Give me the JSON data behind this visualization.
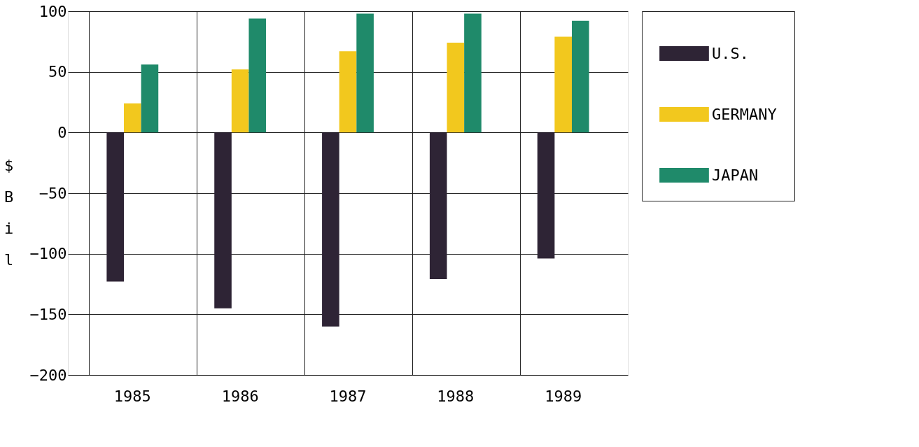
{
  "chart_data": {
    "type": "bar",
    "ylabel": "$Bil",
    "categories": [
      "1985",
      "1986",
      "1987",
      "1988",
      "1989"
    ],
    "series": [
      {
        "name": "U.S.",
        "color": "#2e2435",
        "values": [
          -123,
          -145,
          -160,
          -121,
          -104
        ]
      },
      {
        "name": "GERMANY",
        "color": "#f2c81e",
        "values": [
          24,
          52,
          67,
          74,
          79
        ]
      },
      {
        "name": "JAPAN",
        "color": "#1f8a6a",
        "values": [
          56,
          94,
          98,
          98,
          92
        ]
      }
    ],
    "ylim": [
      -200,
      100
    ],
    "yticks": [
      -200,
      -150,
      -100,
      -50,
      0,
      50,
      100
    ],
    "grid": true,
    "legend": "right"
  }
}
